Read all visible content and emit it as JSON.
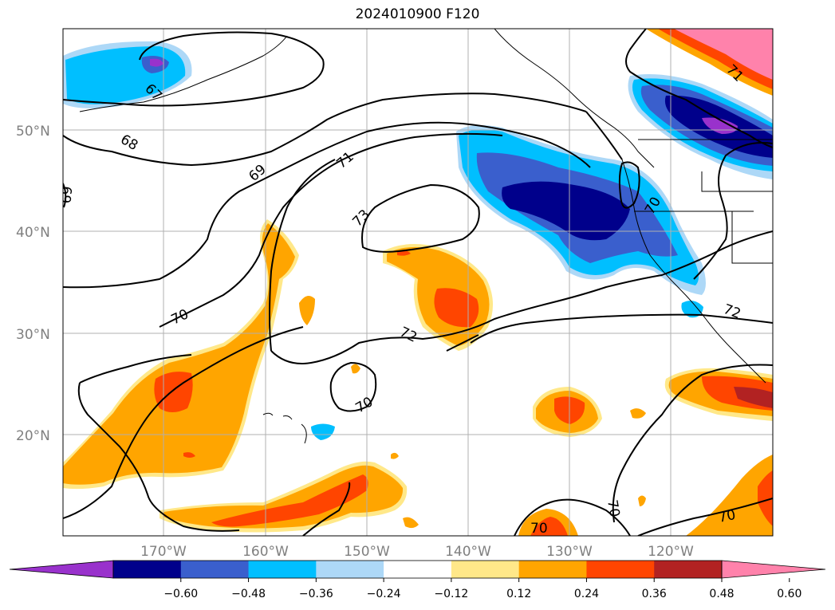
{
  "title": "2024010900 F120",
  "lat_labels": [
    "50°N",
    "40°N",
    "30°N",
    "20°N"
  ],
  "lon_labels": [
    "170°W",
    "160°W",
    "150°W",
    "140°W",
    "130°W",
    "120°W"
  ],
  "colorbar": {
    "ticks": [
      "−0.60",
      "−0.48",
      "−0.36",
      "−0.24",
      "−0.12",
      "0.12",
      "0.24",
      "0.36",
      "0.48",
      "0.60"
    ],
    "colors": [
      "#9932cc",
      "#00008b",
      "#3a5fcd",
      "#00bfff",
      "#add8f7",
      "#ffffff",
      "#ffe889",
      "#ffa500",
      "#ff4500",
      "#b22222",
      "#ff82ab"
    ]
  },
  "contour_labels": [
    "67",
    "68",
    "69",
    "69",
    "71",
    "73",
    "72",
    "70",
    "70",
    "70",
    "71",
    "70",
    "72",
    "70",
    "70"
  ]
}
